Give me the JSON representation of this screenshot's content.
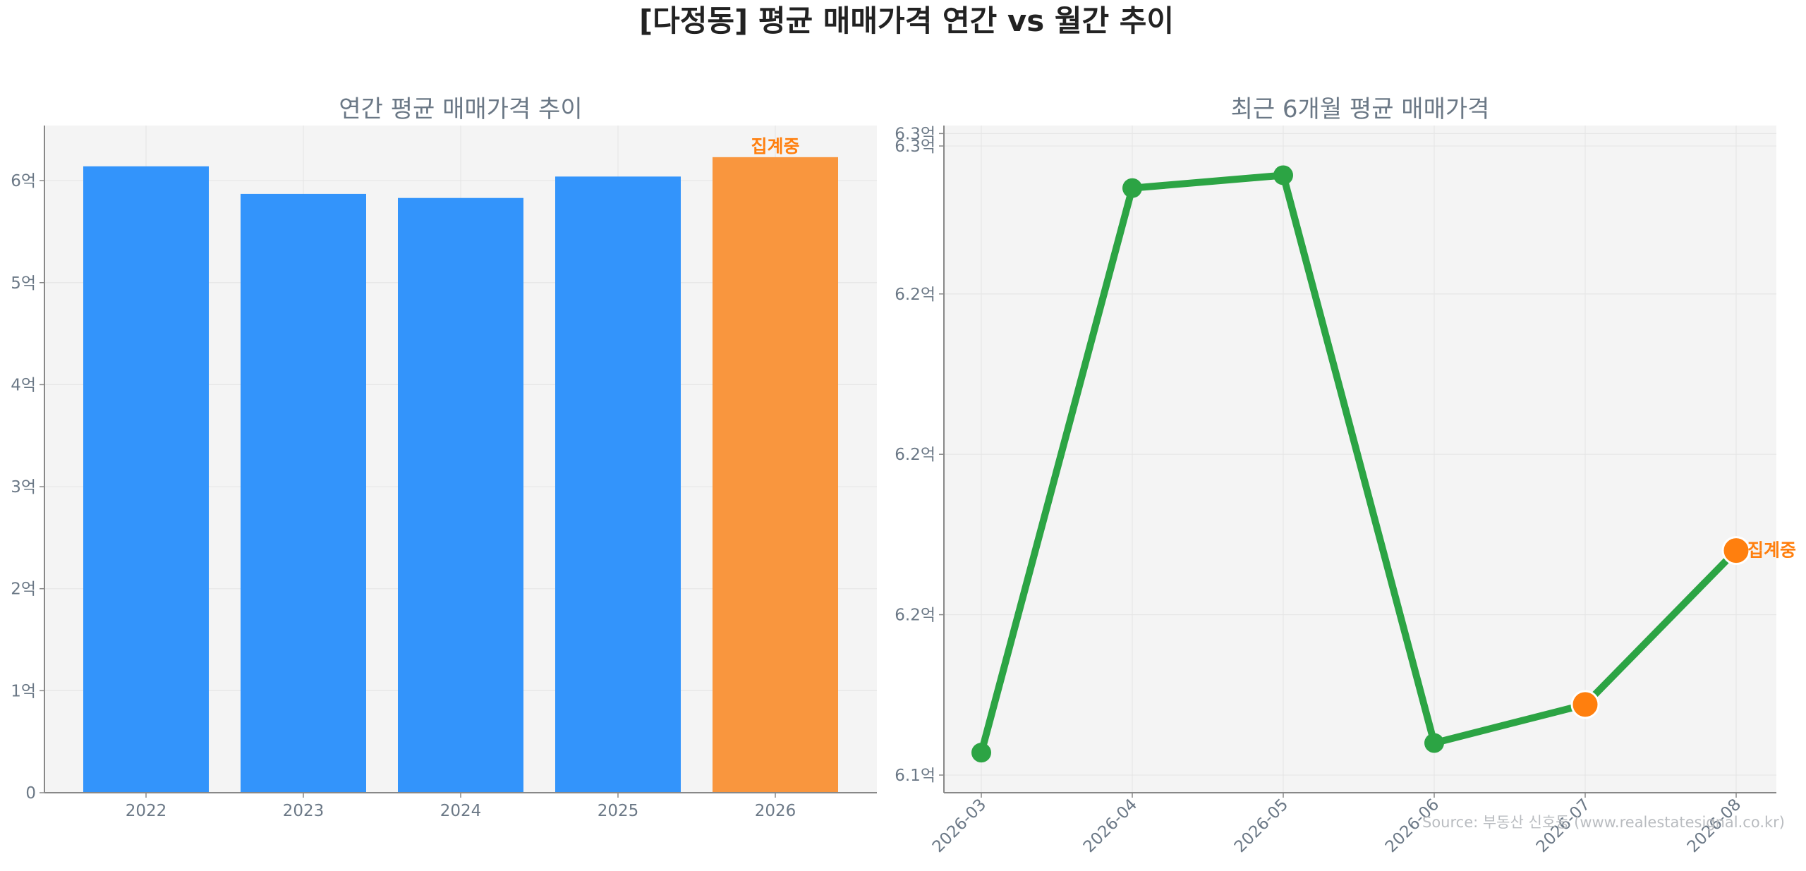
{
  "figure": {
    "title": "[다정동] 평균 매매가격 연간 vs 월간 추이",
    "source": "Source: 부동산 신호등 (www.realestatesignal.co.kr)"
  },
  "colors": {
    "bar": "#3394fb",
    "bar_partial": "#f9963e",
    "line": "#2ca444",
    "partial_marker": "#ff7f0e",
    "partial_text": "#ff7f0e",
    "subtitle": "#6b7886",
    "tick_text": "#6b7886",
    "plot_bg": "#f4f4f4",
    "grid": "#e6e6e6",
    "axis": "#888888"
  },
  "chart_data": [
    {
      "type": "bar",
      "title": "연간 평균 매매가격 추이",
      "categories": [
        "2022",
        "2023",
        "2024",
        "2025",
        "2026"
      ],
      "values": [
        6.14,
        5.87,
        5.83,
        6.04,
        6.23
      ],
      "yticks": [
        0,
        1,
        2,
        3,
        4,
        5,
        6
      ],
      "ytick_labels": [
        "0",
        "1억",
        "2억",
        "3억",
        "4억",
        "5억",
        "6억"
      ],
      "ylim": [
        0,
        6.54
      ],
      "highlight_index": 4,
      "highlight_label": "집계중",
      "grid": true
    },
    {
      "type": "line",
      "title": "최근 6개월 평균 매매가격",
      "categories": [
        "2026-03",
        "2026-04",
        "2026-05",
        "2026-06",
        "2026-07",
        "2026-08"
      ],
      "values": [
        6.107,
        6.283,
        6.287,
        6.11,
        6.122,
        6.17
      ],
      "yticks": [
        6.1,
        6.15,
        6.2,
        6.25,
        6.3
      ],
      "ytick_labels": [
        "6.1억",
        "6.2억",
        "6.2억",
        "6.2억",
        "6.3억"
      ],
      "extra_ytick": {
        "value": 6.275,
        "label": "6.3억"
      },
      "ylim": [
        6.0945,
        6.3025
      ],
      "partial_indices": [
        4,
        5
      ],
      "partial_label_index": 5,
      "partial_label": "집계중",
      "grid": true
    }
  ]
}
